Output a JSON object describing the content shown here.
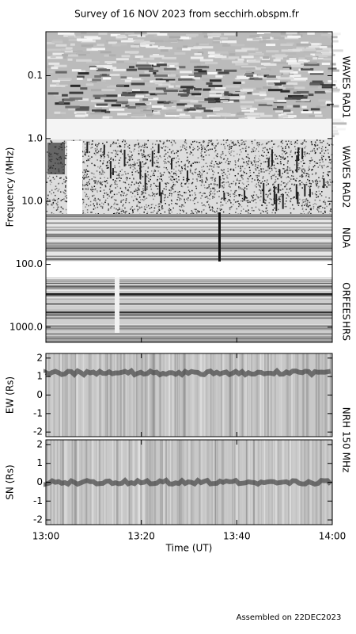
{
  "title": "Survey of 16 NOV 2023 from secchirh.obspm.fr",
  "footer": "Assembled on 22DEC2023",
  "xlabel": "Time (UT)",
  "xlim": [
    "13:00",
    "14:00"
  ],
  "xticks": [
    "13:00",
    "13:20",
    "13:40",
    "14:00"
  ],
  "chart_data": [
    {
      "type": "spectrogram",
      "ylabel": "Frequency (MHz)",
      "log_y": true,
      "inverted_y": true,
      "ylim": [
        0.02,
        1740
      ],
      "yticks": [
        0.1,
        {
          "value": 1,
          "label": "1.0"
        },
        {
          "value": 10,
          "label": "10.0"
        },
        {
          "value": 100,
          "label": "100.0"
        },
        {
          "value": 1000,
          "label": "1000.0"
        }
      ],
      "bands": [
        "WAVES RAD1",
        "WAVES RAD2",
        "NDA",
        "ORFEES",
        "HRS"
      ]
    },
    {
      "type": "position",
      "ylabel": "EW (Rs)",
      "ylim": [
        -2.25,
        2.25
      ],
      "yticks": [
        -2,
        -1,
        0,
        1,
        2
      ],
      "instrument": "NRH 150 MHz"
    },
    {
      "type": "position",
      "ylabel": "SN (Rs)",
      "ylim": [
        -2.25,
        2.25
      ],
      "yticks": [
        -2,
        -1,
        0,
        1,
        2
      ]
    }
  ]
}
